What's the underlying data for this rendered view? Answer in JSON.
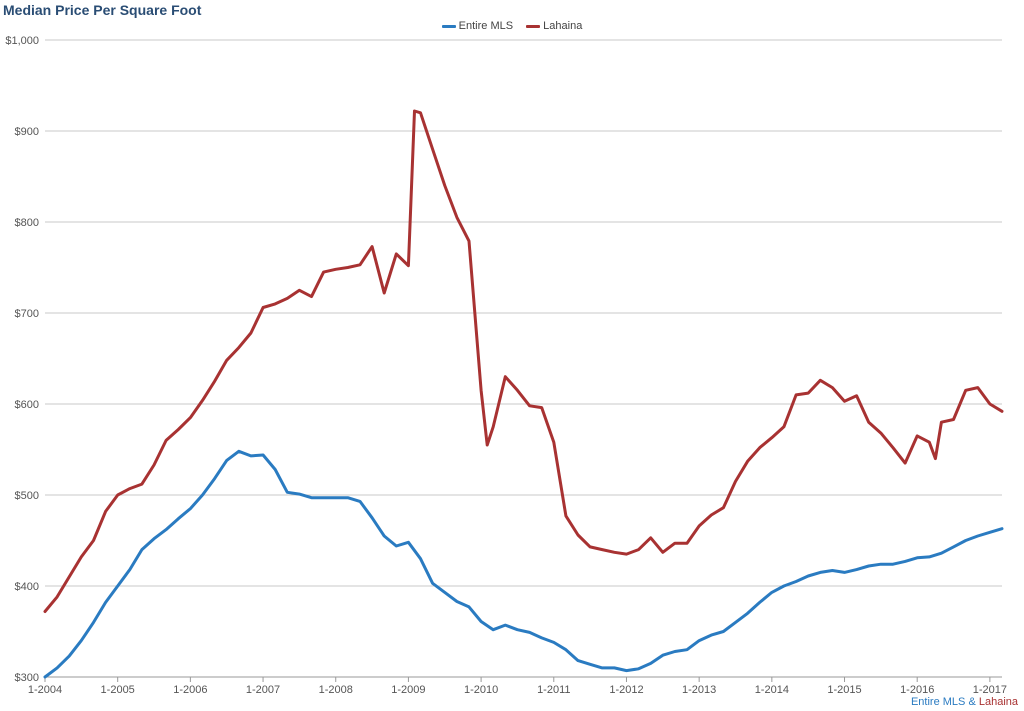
{
  "chart_data": {
    "type": "line",
    "title": "Median Price Per Square Foot",
    "ylim": [
      300,
      1000
    ],
    "y_ticks": [
      300,
      400,
      500,
      600,
      700,
      800,
      900,
      1000
    ],
    "y_tick_labels": [
      "$300",
      "$400",
      "$500",
      "$600",
      "$700",
      "$800",
      "$900",
      "$1,000"
    ],
    "x_ticks": [
      "1-2004",
      "1-2005",
      "1-2006",
      "1-2007",
      "1-2008",
      "1-2009",
      "1-2010",
      "1-2011",
      "1-2012",
      "1-2013",
      "1-2014",
      "1-2015",
      "1-2016",
      "1-2017"
    ],
    "x_start": "2004-01",
    "x_end": "2017-03",
    "grid": true,
    "legend_position": "top-center",
    "series": [
      {
        "name": "Entire MLS",
        "color": "#2a7bc1",
        "points": [
          [
            "2004-01",
            300
          ],
          [
            "2004-03",
            310
          ],
          [
            "2004-05",
            323
          ],
          [
            "2004-07",
            340
          ],
          [
            "2004-09",
            360
          ],
          [
            "2004-11",
            382
          ],
          [
            "2005-01",
            400
          ],
          [
            "2005-03",
            418
          ],
          [
            "2005-05",
            440
          ],
          [
            "2005-07",
            452
          ],
          [
            "2005-09",
            462
          ],
          [
            "2005-11",
            474
          ],
          [
            "2006-01",
            485
          ],
          [
            "2006-03",
            500
          ],
          [
            "2006-05",
            518
          ],
          [
            "2006-07",
            538
          ],
          [
            "2006-09",
            548
          ],
          [
            "2006-11",
            543
          ],
          [
            "2007-01",
            544
          ],
          [
            "2007-03",
            528
          ],
          [
            "2007-05",
            503
          ],
          [
            "2007-07",
            501
          ],
          [
            "2007-09",
            497
          ],
          [
            "2007-11",
            497
          ],
          [
            "2008-01",
            497
          ],
          [
            "2008-03",
            497
          ],
          [
            "2008-05",
            493
          ],
          [
            "2008-07",
            475
          ],
          [
            "2008-09",
            455
          ],
          [
            "2008-11",
            444
          ],
          [
            "2009-01",
            448
          ],
          [
            "2009-03",
            430
          ],
          [
            "2009-05",
            403
          ],
          [
            "2009-07",
            393
          ],
          [
            "2009-09",
            383
          ],
          [
            "2009-11",
            377
          ],
          [
            "2010-01",
            361
          ],
          [
            "2010-03",
            352
          ],
          [
            "2010-05",
            357
          ],
          [
            "2010-07",
            352
          ],
          [
            "2010-09",
            349
          ],
          [
            "2010-11",
            343
          ],
          [
            "2011-01",
            338
          ],
          [
            "2011-03",
            330
          ],
          [
            "2011-05",
            318
          ],
          [
            "2011-07",
            314
          ],
          [
            "2011-09",
            310
          ],
          [
            "2011-11",
            310
          ],
          [
            "2012-01",
            307
          ],
          [
            "2012-03",
            309
          ],
          [
            "2012-05",
            315
          ],
          [
            "2012-07",
            324
          ],
          [
            "2012-09",
            328
          ],
          [
            "2012-11",
            330
          ],
          [
            "2013-01",
            340
          ],
          [
            "2013-03",
            346
          ],
          [
            "2013-05",
            350
          ],
          [
            "2013-07",
            360
          ],
          [
            "2013-09",
            370
          ],
          [
            "2013-11",
            382
          ],
          [
            "2014-01",
            393
          ],
          [
            "2014-03",
            400
          ],
          [
            "2014-05",
            405
          ],
          [
            "2014-07",
            411
          ],
          [
            "2014-09",
            415
          ],
          [
            "2014-11",
            417
          ],
          [
            "2015-01",
            415
          ],
          [
            "2015-03",
            418
          ],
          [
            "2015-05",
            422
          ],
          [
            "2015-07",
            424
          ],
          [
            "2015-09",
            424
          ],
          [
            "2015-11",
            427
          ],
          [
            "2016-01",
            431
          ],
          [
            "2016-03",
            432
          ],
          [
            "2016-05",
            436
          ],
          [
            "2016-07",
            443
          ],
          [
            "2016-09",
            450
          ],
          [
            "2016-11",
            455
          ],
          [
            "2017-01",
            459
          ],
          [
            "2017-03",
            463
          ]
        ]
      },
      {
        "name": "Lahaina",
        "color": "#a83232",
        "points": [
          [
            "2004-01",
            372
          ],
          [
            "2004-03",
            388
          ],
          [
            "2004-05",
            410
          ],
          [
            "2004-07",
            432
          ],
          [
            "2004-09",
            450
          ],
          [
            "2004-11",
            482
          ],
          [
            "2005-01",
            500
          ],
          [
            "2005-03",
            507
          ],
          [
            "2005-05",
            512
          ],
          [
            "2005-07",
            533
          ],
          [
            "2005-09",
            560
          ],
          [
            "2005-11",
            572
          ],
          [
            "2006-01",
            585
          ],
          [
            "2006-03",
            604
          ],
          [
            "2006-05",
            625
          ],
          [
            "2006-07",
            648
          ],
          [
            "2006-09",
            662
          ],
          [
            "2006-11",
            678
          ],
          [
            "2007-01",
            706
          ],
          [
            "2007-03",
            710
          ],
          [
            "2007-05",
            716
          ],
          [
            "2007-07",
            725
          ],
          [
            "2007-09",
            718
          ],
          [
            "2007-11",
            745
          ],
          [
            "2008-01",
            748
          ],
          [
            "2008-03",
            750
          ],
          [
            "2008-05",
            753
          ],
          [
            "2008-07",
            773
          ],
          [
            "2008-09",
            722
          ],
          [
            "2008-11",
            765
          ],
          [
            "2009-01",
            752
          ],
          [
            "2009-02",
            922
          ],
          [
            "2009-03",
            920
          ],
          [
            "2009-05",
            880
          ],
          [
            "2009-07",
            840
          ],
          [
            "2009-09",
            805
          ],
          [
            "2009-11",
            779
          ],
          [
            "2010-01",
            615
          ],
          [
            "2010-02",
            555
          ],
          [
            "2010-03",
            575
          ],
          [
            "2010-05",
            630
          ],
          [
            "2010-07",
            615
          ],
          [
            "2010-09",
            598
          ],
          [
            "2010-11",
            596
          ],
          [
            "2011-01",
            558
          ],
          [
            "2011-03",
            477
          ],
          [
            "2011-05",
            456
          ],
          [
            "2011-07",
            443
          ],
          [
            "2011-09",
            440
          ],
          [
            "2011-11",
            437
          ],
          [
            "2012-01",
            435
          ],
          [
            "2012-03",
            440
          ],
          [
            "2012-05",
            453
          ],
          [
            "2012-07",
            437
          ],
          [
            "2012-09",
            447
          ],
          [
            "2012-11",
            447
          ],
          [
            "2013-01",
            466
          ],
          [
            "2013-03",
            478
          ],
          [
            "2013-05",
            486
          ],
          [
            "2013-07",
            515
          ],
          [
            "2013-09",
            537
          ],
          [
            "2013-11",
            552
          ],
          [
            "2014-01",
            563
          ],
          [
            "2014-03",
            575
          ],
          [
            "2014-05",
            610
          ],
          [
            "2014-07",
            612
          ],
          [
            "2014-09",
            626
          ],
          [
            "2014-11",
            618
          ],
          [
            "2015-01",
            603
          ],
          [
            "2015-03",
            609
          ],
          [
            "2015-05",
            580
          ],
          [
            "2015-07",
            568
          ],
          [
            "2015-09",
            552
          ],
          [
            "2015-11",
            535
          ],
          [
            "2016-01",
            565
          ],
          [
            "2016-03",
            558
          ],
          [
            "2016-04",
            540
          ],
          [
            "2016-05",
            580
          ],
          [
            "2016-07",
            583
          ],
          [
            "2016-09",
            615
          ],
          [
            "2016-11",
            618
          ],
          [
            "2017-01",
            600
          ],
          [
            "2017-03",
            592
          ]
        ]
      }
    ]
  },
  "credit": {
    "part1": "Entire MLS",
    "sep": " & ",
    "part2": "Lahaina"
  }
}
